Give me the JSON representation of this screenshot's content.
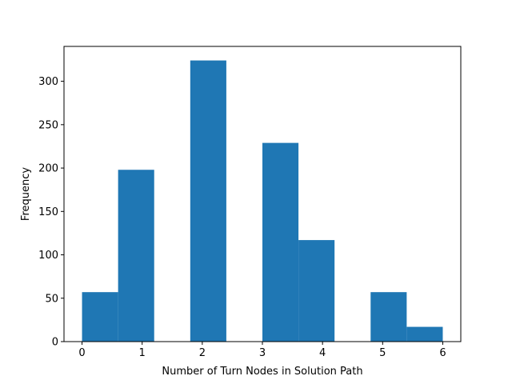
{
  "chart_data": {
    "type": "bar",
    "title": "",
    "xlabel": "Number of Turn Nodes in Solution Path",
    "ylabel": "Frequency",
    "bins": [
      {
        "x0": 0.0,
        "x1": 0.6,
        "value": 57
      },
      {
        "x0": 0.6,
        "x1": 1.2,
        "value": 198
      },
      {
        "x0": 1.2,
        "x1": 1.8,
        "value": 0
      },
      {
        "x0": 1.8,
        "x1": 2.4,
        "value": 324
      },
      {
        "x0": 2.4,
        "x1": 3.0,
        "value": 0
      },
      {
        "x0": 3.0,
        "x1": 3.6,
        "value": 229
      },
      {
        "x0": 3.6,
        "x1": 4.2,
        "value": 117
      },
      {
        "x0": 4.2,
        "x1": 4.8,
        "value": 0
      },
      {
        "x0": 4.8,
        "x1": 5.4,
        "value": 57
      },
      {
        "x0": 5.4,
        "x1": 6.0,
        "value": 17
      }
    ],
    "xlim": [
      -0.3,
      6.3
    ],
    "ylim": [
      0,
      340.2
    ],
    "xticks": [
      0,
      1,
      2,
      3,
      4,
      5,
      6
    ],
    "yticks": [
      0,
      50,
      100,
      150,
      200,
      250,
      300
    ],
    "bar_color": "#1f77b4",
    "grid": false,
    "legend": "none"
  }
}
